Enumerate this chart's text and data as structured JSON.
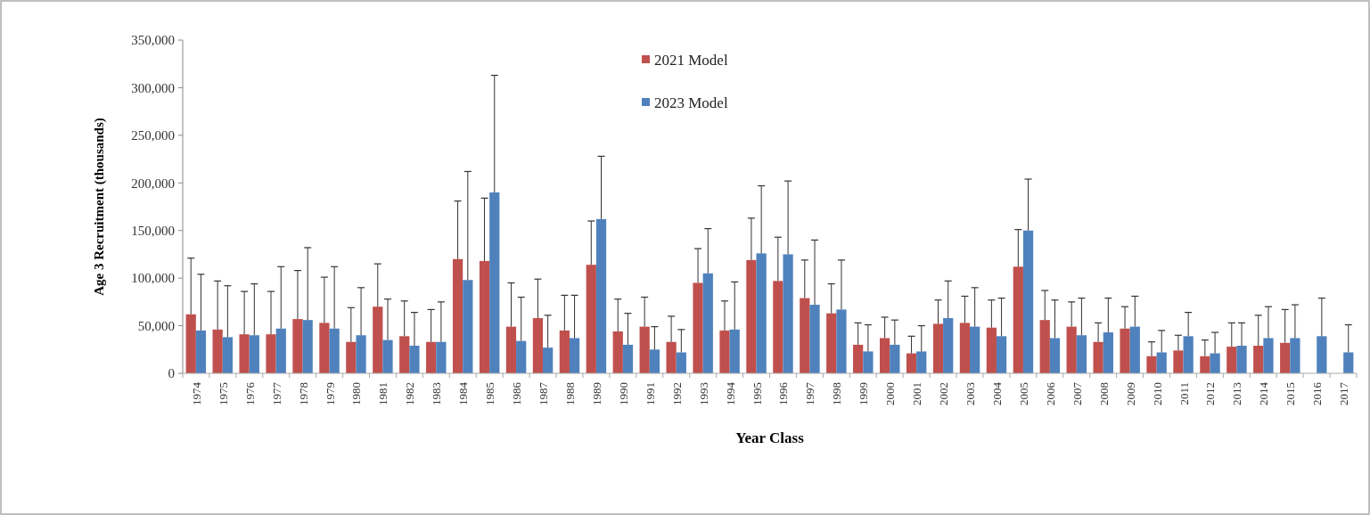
{
  "chart_data": {
    "type": "bar",
    "xlabel": "Year Class",
    "ylabel": "Age 3 Recruitment (thousands)",
    "categories": [
      "1974",
      "1975",
      "1976",
      "1977",
      "1978",
      "1979",
      "1980",
      "1981",
      "1982",
      "1983",
      "1984",
      "1985",
      "1986",
      "1987",
      "1988",
      "1989",
      "1990",
      "1991",
      "1992",
      "1993",
      "1994",
      "1995",
      "1996",
      "1997",
      "1998",
      "1999",
      "2000",
      "2001",
      "2002",
      "2003",
      "2004",
      "2005",
      "2006",
      "2007",
      "2008",
      "2009",
      "2010",
      "2011",
      "2012",
      "2013",
      "2014",
      "2015",
      "2016",
      "2017"
    ],
    "series": [
      {
        "name": "2021 Model",
        "color": "#c0504d",
        "values": [
          62000,
          46000,
          41000,
          41000,
          57000,
          53000,
          33000,
          70000,
          39000,
          33000,
          120000,
          118000,
          49000,
          58000,
          45000,
          114000,
          44000,
          49000,
          33000,
          95000,
          45000,
          119000,
          97000,
          79000,
          63000,
          30000,
          37000,
          21000,
          52000,
          53000,
          48000,
          112000,
          56000,
          49000,
          33000,
          47000,
          18000,
          24000,
          18000,
          28000,
          29000,
          32000,
          null,
          null
        ],
        "errors": [
          [
            62000,
            121000
          ],
          [
            46000,
            97000
          ],
          [
            41000,
            86000
          ],
          [
            41000,
            86000
          ],
          [
            57000,
            108000
          ],
          [
            53000,
            101000
          ],
          [
            33000,
            69000
          ],
          [
            70000,
            115000
          ],
          [
            39000,
            76000
          ],
          [
            33000,
            67000
          ],
          [
            120000,
            181000
          ],
          [
            118000,
            184000
          ],
          [
            49000,
            95000
          ],
          [
            58000,
            99000
          ],
          [
            45000,
            82000
          ],
          [
            114000,
            160000
          ],
          [
            44000,
            78000
          ],
          [
            49000,
            80000
          ],
          [
            33000,
            60000
          ],
          [
            95000,
            131000
          ],
          [
            45000,
            76000
          ],
          [
            119000,
            163000
          ],
          [
            97000,
            143000
          ],
          [
            79000,
            119000
          ],
          [
            63000,
            94000
          ],
          [
            30000,
            53000
          ],
          [
            37000,
            59000
          ],
          [
            21000,
            39000
          ],
          [
            52000,
            77000
          ],
          [
            53000,
            81000
          ],
          [
            48000,
            77000
          ],
          [
            112000,
            151000
          ],
          [
            56000,
            87000
          ],
          [
            49000,
            75000
          ],
          [
            33000,
            53000
          ],
          [
            47000,
            70000
          ],
          [
            18000,
            33000
          ],
          [
            24000,
            40000
          ],
          [
            18000,
            35000
          ],
          [
            28000,
            53000
          ],
          [
            29000,
            61000
          ],
          [
            32000,
            67000
          ],
          null,
          null
        ]
      },
      {
        "name": "2023 Model",
        "color": "#4f81bd",
        "values": [
          45000,
          38000,
          40000,
          47000,
          56000,
          47000,
          40000,
          35000,
          29000,
          33000,
          98000,
          190000,
          34000,
          27000,
          37000,
          162000,
          30000,
          25000,
          22000,
          105000,
          46000,
          126000,
          125000,
          72000,
          67000,
          23000,
          30000,
          23000,
          58000,
          49000,
          39000,
          150000,
          37000,
          40000,
          43000,
          49000,
          22000,
          39000,
          21000,
          29000,
          37000,
          37000,
          39000,
          22000
        ],
        "errors": [
          [
            45000,
            104000
          ],
          [
            38000,
            92000
          ],
          [
            40000,
            94000
          ],
          [
            47000,
            112000
          ],
          [
            56000,
            132000
          ],
          [
            47000,
            112000
          ],
          [
            40000,
            90000
          ],
          [
            35000,
            78000
          ],
          [
            29000,
            64000
          ],
          [
            33000,
            75000
          ],
          [
            98000,
            212000
          ],
          [
            190000,
            313000
          ],
          [
            34000,
            80000
          ],
          [
            27000,
            61000
          ],
          [
            37000,
            82000
          ],
          [
            162000,
            228000
          ],
          [
            30000,
            63000
          ],
          [
            25000,
            49000
          ],
          [
            22000,
            46000
          ],
          [
            105000,
            152000
          ],
          [
            46000,
            96000
          ],
          [
            126000,
            197000
          ],
          [
            125000,
            202000
          ],
          [
            72000,
            140000
          ],
          [
            67000,
            119000
          ],
          [
            23000,
            51000
          ],
          [
            30000,
            56000
          ],
          [
            23000,
            50000
          ],
          [
            58000,
            97000
          ],
          [
            49000,
            90000
          ],
          [
            39000,
            79000
          ],
          [
            150000,
            204000
          ],
          [
            37000,
            77000
          ],
          [
            40000,
            79000
          ],
          [
            43000,
            79000
          ],
          [
            49000,
            81000
          ],
          [
            22000,
            45000
          ],
          [
            39000,
            64000
          ],
          [
            21000,
            43000
          ],
          [
            29000,
            53000
          ],
          [
            37000,
            70000
          ],
          [
            37000,
            72000
          ],
          [
            39000,
            79000
          ],
          [
            22000,
            51000
          ]
        ]
      }
    ],
    "ylim": [
      0,
      350000
    ],
    "yticks": [
      {
        "value": 0,
        "label": "0"
      },
      {
        "value": 50000,
        "label": "50,000"
      },
      {
        "value": 100000,
        "label": "100,000"
      },
      {
        "value": 150000,
        "label": "150,000"
      },
      {
        "value": 200000,
        "label": "200,000"
      },
      {
        "value": 250000,
        "label": "250,000"
      },
      {
        "value": 300000,
        "label": "300,000"
      },
      {
        "value": 350000,
        "label": "350,000"
      }
    ],
    "legend": "top"
  }
}
